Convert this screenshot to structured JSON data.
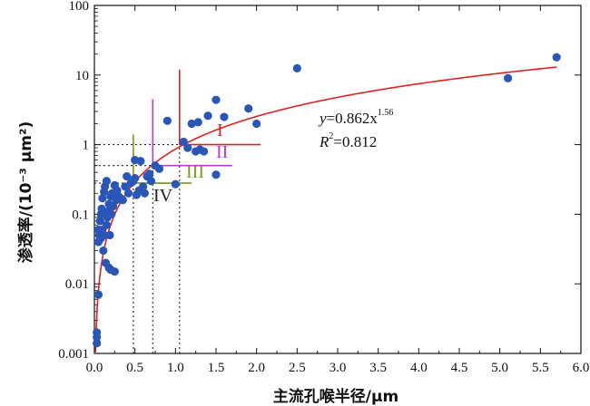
{
  "chart_data": {
    "type": "scatter",
    "title": "",
    "xlabel": "主流孔喉半径/μm",
    "ylabel": "渗透率/(10⁻³ μm²)",
    "xlim": [
      0.0,
      6.0
    ],
    "ylim": [
      0.001,
      100
    ],
    "yscale": "log",
    "x_ticks": [
      "0.0",
      "0.5",
      "1.0",
      "1.5",
      "2.0",
      "2.5",
      "3.0",
      "3.5",
      "4.0",
      "4.5",
      "5.0",
      "5.5",
      "6.0"
    ],
    "y_ticks": [
      "0.001",
      "0.01",
      "0.1",
      "1",
      "10",
      "100"
    ],
    "grid": false,
    "legend": "none",
    "colors": {
      "points": "#2a56b8",
      "fit": "#e02020",
      "class1": "#e02020",
      "class2": "#b43cc8",
      "class3": "#7a9a20",
      "class4": "#222222"
    },
    "series": [
      {
        "kind": "points",
        "x": [
          0.03,
          0.03,
          0.03,
          0.05,
          0.05,
          0.05,
          0.06,
          0.07,
          0.08,
          0.08,
          0.09,
          0.1,
          0.1,
          0.11,
          0.12,
          0.12,
          0.13,
          0.14,
          0.15,
          0.15,
          0.16,
          0.17,
          0.18,
          0.18,
          0.19,
          0.2,
          0.2,
          0.21,
          0.22,
          0.23,
          0.25,
          0.25,
          0.27,
          0.28,
          0.3,
          0.32,
          0.35,
          0.38,
          0.4,
          0.42,
          0.45,
          0.48,
          0.5,
          0.5,
          0.52,
          0.55,
          0.57,
          0.6,
          0.62,
          0.65,
          0.68,
          0.7,
          0.75,
          0.8,
          0.9,
          1.0,
          1.1,
          1.15,
          1.2,
          1.25,
          1.28,
          1.3,
          1.35,
          1.4,
          1.5,
          1.5,
          1.6,
          1.9,
          2.0,
          2.5,
          5.1,
          5.7
        ],
        "y": [
          0.0014,
          0.0017,
          0.002,
          0.007,
          0.06,
          0.04,
          0.05,
          0.08,
          0.045,
          0.1,
          0.12,
          0.06,
          0.17,
          0.03,
          0.05,
          0.21,
          0.25,
          0.02,
          0.3,
          0.07,
          0.09,
          0.11,
          0.017,
          0.14,
          0.05,
          0.016,
          0.18,
          0.1,
          0.2,
          0.13,
          0.26,
          0.015,
          0.16,
          0.22,
          0.18,
          0.17,
          0.16,
          0.25,
          0.35,
          0.2,
          0.28,
          0.3,
          0.33,
          0.6,
          0.19,
          0.22,
          0.58,
          0.25,
          0.2,
          0.35,
          0.38,
          0.3,
          0.5,
          0.45,
          2.2,
          0.27,
          1.1,
          0.9,
          2.0,
          0.8,
          2.1,
          0.85,
          0.8,
          2.6,
          4.4,
          0.37,
          2.5,
          3.3,
          2.0,
          12.5,
          9.0,
          18.0
        ]
      }
    ],
    "fit": {
      "a": 0.862,
      "b": 1.56,
      "x_from": 0.01,
      "x_to": 5.7
    },
    "guide_lines": [
      {
        "class": "I",
        "vline_x": 1.05,
        "vline_y_top": 12,
        "hline_y": 1.0,
        "hline_x_to": 2.05
      },
      {
        "class": "II",
        "vline_x": 0.72,
        "vline_y_top": 4.5,
        "hline_y": 0.5,
        "hline_x_to": 1.7
      },
      {
        "class": "III",
        "vline_x": 0.48,
        "vline_y_top": 1.4,
        "hline_y": 0.28,
        "hline_x_to": 1.2
      }
    ]
  },
  "annotations": {
    "equation_y": "y",
    "equation_rest": "=0.862x",
    "equation_exp": "1.56",
    "equation_r_symbol": "R",
    "equation_r_exp": "2",
    "equation_r_value": "=0.812",
    "class_labels": [
      "I",
      "II",
      "III",
      "IV"
    ]
  }
}
